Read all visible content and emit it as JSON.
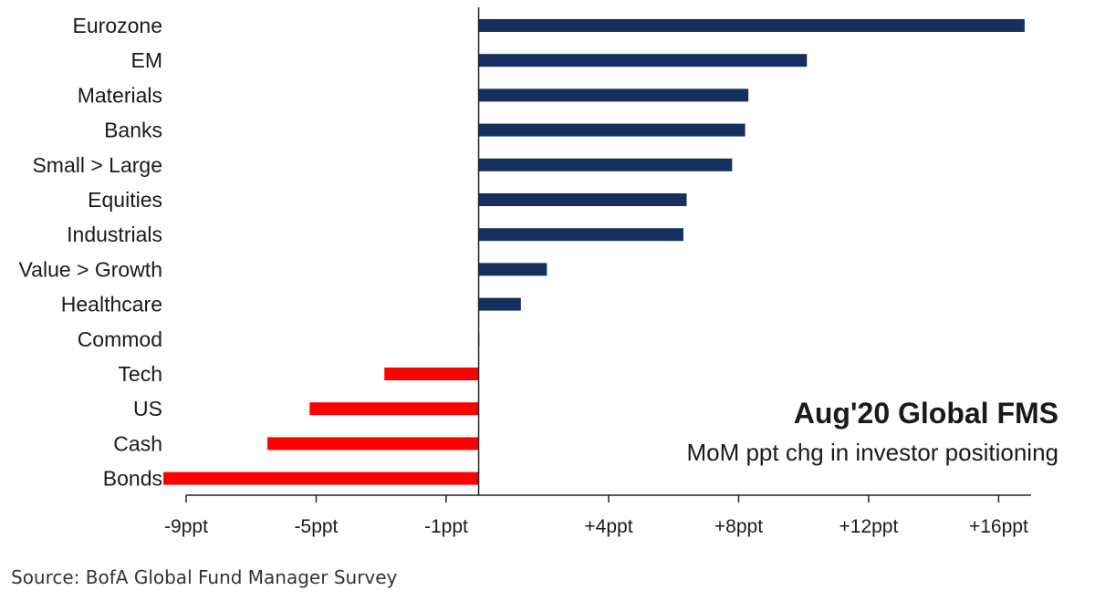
{
  "chart_data": {
    "type": "bar",
    "orientation": "horizontal",
    "title": "Aug'20 Global FMS",
    "subtitle": "MoM ppt chg in investor positioning",
    "source": "Source: BofA Global Fund Manager Survey",
    "categories": [
      "Eurozone",
      "EM",
      "Materials",
      "Banks",
      "Small > Large",
      "Equities",
      "Industrials",
      "Value > Growth",
      "Healthcare",
      "Commod",
      "Tech",
      "US",
      "Cash",
      "Bonds"
    ],
    "values": [
      16.8,
      10.1,
      8.3,
      8.2,
      7.8,
      6.4,
      6.3,
      2.1,
      1.3,
      0.0,
      -2.9,
      -5.2,
      -6.5,
      -9.7
    ],
    "xlim": [
      -9,
      17
    ],
    "xticks": [
      -9,
      -5,
      -1,
      4,
      8,
      12,
      16
    ],
    "xtick_labels": [
      "-9ppt",
      "-5ppt",
      "-1ppt",
      "+4ppt",
      "+8ppt",
      "+12ppt",
      "+16ppt"
    ],
    "grid": false,
    "colors": {
      "positive": "#15305e",
      "negative": "#ff0000",
      "axis": "#222222"
    }
  }
}
